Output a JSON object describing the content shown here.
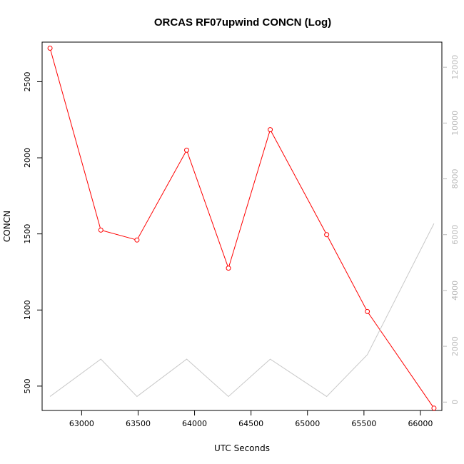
{
  "chart_data": {
    "type": "line",
    "title": "ORCAS RF07upwind CONCN (Log)",
    "xlabel": "UTC Seconds",
    "ylabel": "CONCN",
    "x": [
      62720,
      63170,
      63490,
      63930,
      64300,
      64670,
      65170,
      65530,
      66120
    ],
    "xlim": [
      62650,
      66190
    ],
    "x_ticks": [
      63000,
      63500,
      64000,
      64500,
      65000,
      65500,
      66000
    ],
    "ylim": [
      340,
      2760
    ],
    "y_ticks": [
      500,
      1000,
      1500,
      2000,
      2500
    ],
    "y2lim": [
      -300,
      12900
    ],
    "y2_ticks": [
      0,
      2000,
      4000,
      6000,
      8000,
      10000,
      12000
    ],
    "grid": false,
    "series": [
      {
        "axis": "left",
        "color": "#ff0000",
        "marker": "open-circle",
        "values": [
          2720,
          1525,
          1460,
          2050,
          1275,
          2185,
          1495,
          990,
          355
        ]
      },
      {
        "axis": "right",
        "color": "#c8c8c8",
        "marker": "none",
        "values": [
          200,
          1540,
          200,
          1540,
          200,
          1540,
          200,
          1700,
          6400
        ]
      }
    ]
  }
}
